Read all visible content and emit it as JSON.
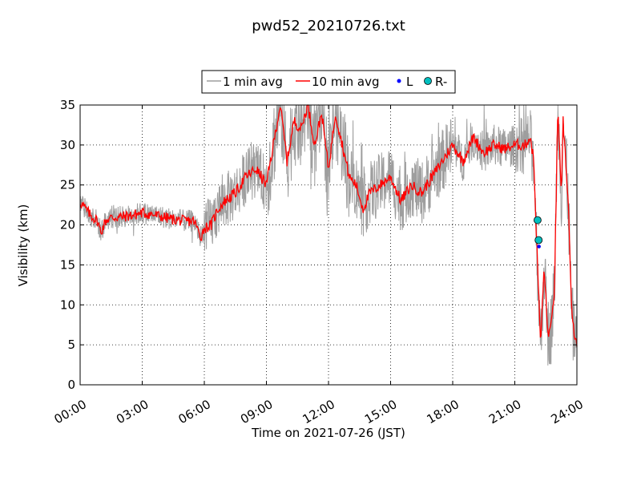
{
  "chart_data": {
    "type": "line",
    "title": "pwd52_20210726.txt",
    "xlabel": "Time on 2021-07-26 (JST)",
    "ylabel": "Visibility (km)",
    "xlim": [
      "00:00",
      "24:00"
    ],
    "ylim": [
      0,
      35
    ],
    "x_ticks": [
      "00:00",
      "03:00",
      "06:00",
      "09:00",
      "12:00",
      "15:00",
      "18:00",
      "21:00",
      "24:00"
    ],
    "y_ticks": [
      "0",
      "5",
      "10",
      "15",
      "20",
      "25",
      "30",
      "35"
    ],
    "grid": true,
    "legend_position": "top-center",
    "legend": [
      "1 min avg",
      "10 min avg",
      "L",
      "R-"
    ],
    "colors": {
      "one_min": "#9e9e9e",
      "ten_min": "#ff0000",
      "L": "#0000ff",
      "R": "#00bfbf"
    },
    "series": [
      {
        "name": "10 min avg",
        "x": [
          "00:00",
          "00:30",
          "00:50",
          "01:00",
          "01:15",
          "01:30",
          "02:00",
          "02:30",
          "03:00",
          "03:30",
          "04:00",
          "04:30",
          "05:00",
          "05:30",
          "05:50",
          "06:00",
          "06:20",
          "06:40",
          "07:00",
          "07:30",
          "08:00",
          "08:30",
          "09:00",
          "09:20",
          "09:40",
          "10:00",
          "10:20",
          "10:40",
          "11:00",
          "11:20",
          "11:40",
          "12:00",
          "12:20",
          "12:40",
          "13:00",
          "13:20",
          "13:40",
          "14:00",
          "14:30",
          "15:00",
          "15:30",
          "16:00",
          "16:30",
          "17:00",
          "17:30",
          "18:00",
          "18:30",
          "19:00",
          "19:30",
          "20:00",
          "20:30",
          "21:00",
          "21:30",
          "21:45",
          "21:55",
          "22:05",
          "22:15",
          "22:25",
          "22:35",
          "22:45",
          "22:55",
          "23:05",
          "23:15",
          "23:20",
          "23:35",
          "23:45",
          "24:00"
        ],
        "y": [
          22.9,
          21.2,
          20.5,
          19.1,
          20.6,
          20.9,
          21.0,
          21.2,
          21.5,
          21.3,
          21.0,
          20.7,
          20.5,
          20.5,
          18.5,
          19.6,
          20.0,
          22.0,
          23.0,
          24.0,
          26.0,
          27.0,
          25.0,
          30.0,
          35.0,
          28.0,
          33.0,
          32.0,
          35.0,
          30.0,
          34.0,
          27.0,
          34.0,
          30.0,
          26.0,
          25.0,
          22.0,
          24.0,
          25.0,
          26.0,
          23.0,
          25.0,
          24.0,
          26.0,
          28.0,
          30.0,
          28.0,
          31.0,
          29.0,
          30.0,
          29.5,
          30.0,
          30.0,
          31.0,
          28.0,
          16.0,
          5.0,
          15.0,
          6.5,
          7.0,
          12.0,
          35.0,
          23.0,
          33.0,
          23.0,
          8.5,
          4.5
        ]
      },
      {
        "name": "1 min avg",
        "x": [
          "00:00",
          "06:00",
          "09:00",
          "12:00",
          "15:00",
          "18:00",
          "21:00",
          "22:10",
          "23:00",
          "24:00"
        ],
        "y": [
          23.0,
          19.0,
          28.0,
          33.0,
          24.0,
          29.0,
          30.0,
          8.0,
          30.0,
          4.0
        ]
      },
      {
        "name": "L",
        "x": [
          "22:10"
        ],
        "y": [
          17.3
        ]
      },
      {
        "name": "R-",
        "x": [
          "22:06",
          "22:09"
        ],
        "y": [
          20.6,
          18.1
        ]
      }
    ]
  }
}
